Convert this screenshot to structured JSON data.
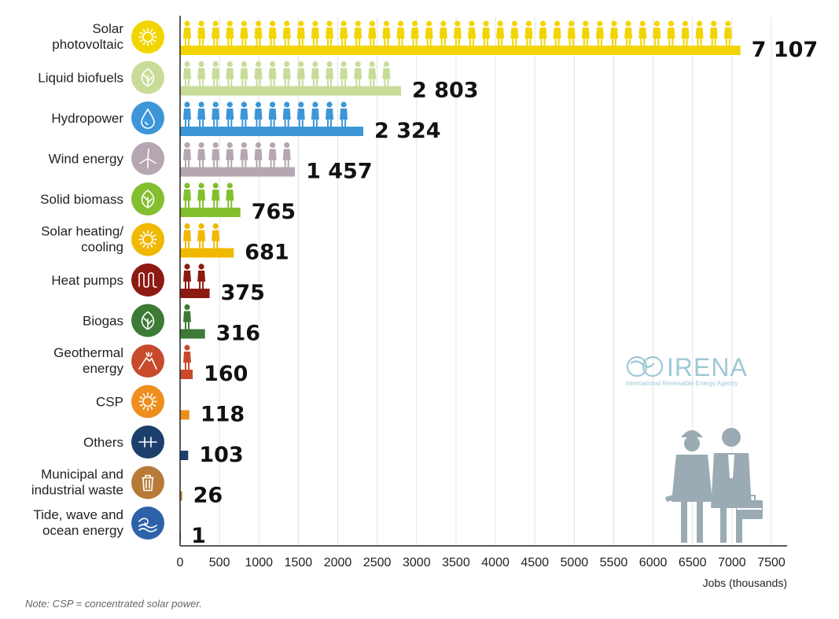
{
  "chart_data": {
    "type": "bar",
    "orientation": "horizontal",
    "xlabel": "Jobs (thousands)",
    "xlim": [
      0,
      7500
    ],
    "xticks": [
      0,
      500,
      1000,
      1500,
      2000,
      2500,
      3000,
      3500,
      4000,
      4500,
      5000,
      5500,
      6000,
      6500,
      7000,
      7500
    ],
    "xtick_labels": [
      "0",
      "500",
      "1000",
      "1500",
      "2000",
      "2500",
      "3000",
      "3500",
      "4000",
      "4500",
      "5000",
      "5500",
      "6000",
      "6500",
      "7000",
      "7500"
    ],
    "grid": true,
    "categories": [
      {
        "label": "Solar\nphotovoltaic",
        "value": 7107,
        "value_label": "7 107",
        "color": "#f2d500",
        "icon": "sun-icon"
      },
      {
        "label": "Liquid biofuels",
        "value": 2803,
        "value_label": "2 803",
        "color": "#c8dc98",
        "icon": "leaf-icon"
      },
      {
        "label": "Hydropower",
        "value": 2324,
        "value_label": "2 324",
        "color": "#3c96d8",
        "icon": "water-drop-icon"
      },
      {
        "label": "Wind energy",
        "value": 1457,
        "value_label": "1 457",
        "color": "#b5a6b1",
        "icon": "wind-turbine-icon"
      },
      {
        "label": "Solid biomass",
        "value": 765,
        "value_label": "765",
        "color": "#84bf2f",
        "icon": "leaf-icon"
      },
      {
        "label": "Solar heating/\ncooling",
        "value": 681,
        "value_label": "681",
        "color": "#f0b800",
        "icon": "sun-icon"
      },
      {
        "label": "Heat pumps",
        "value": 375,
        "value_label": "375",
        "color": "#8c1a12",
        "icon": "heat-pump-coil-icon"
      },
      {
        "label": "Biogas",
        "value": 316,
        "value_label": "316",
        "color": "#3d7a35",
        "icon": "leaf-icon"
      },
      {
        "label": "Geothermal\nenergy",
        "value": 160,
        "value_label": "160",
        "color": "#c84a2c",
        "icon": "volcano-icon"
      },
      {
        "label": "CSP",
        "value": 118,
        "value_label": "118",
        "color": "#ee8e1c",
        "icon": "sun-icon"
      },
      {
        "label": "Others",
        "value": 103,
        "value_label": "103",
        "color": "#1d3f6c",
        "icon": "grid-connection-icon"
      },
      {
        "label": "Municipal and\nindustrial waste",
        "value": 26,
        "value_label": "26",
        "color": "#b87a38",
        "icon": "trash-bin-icon"
      },
      {
        "label": "Tide, wave and\nocean energy",
        "value": 1,
        "value_label": "1",
        "color": "#2e62a8",
        "icon": "wave-icon"
      }
    ]
  },
  "brand": {
    "name": "IRENA",
    "subtitle": "International Renewable Energy Agency",
    "color": "#9fc8d6",
    "icon": "irena-logo-icon"
  },
  "illustration": {
    "icon": "workers-illustration-icon",
    "color": "#9aabb3"
  },
  "note": "Note: CSP = concentrated solar power."
}
